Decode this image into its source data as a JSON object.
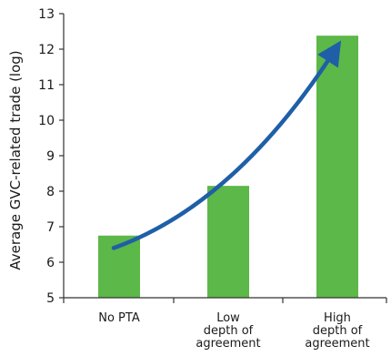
{
  "chart_data": {
    "type": "bar",
    "categories": [
      [
        "No PTA"
      ],
      [
        "Low",
        "depth of",
        "agreement"
      ],
      [
        "High",
        "depth of",
        "agreement"
      ]
    ],
    "values": [
      6.75,
      8.15,
      12.38
    ],
    "ylabel": "Average GVC-related trade (log)",
    "ylim": [
      5,
      13
    ],
    "yticks": [
      5,
      6,
      7,
      8,
      9,
      10,
      11,
      12,
      13
    ],
    "grid": false,
    "trend_arrow": {
      "from": [
        0,
        6.4
      ],
      "to": [
        2,
        12.0
      ]
    },
    "colors": {
      "bar": "#5cb848",
      "arrow": "#1f5fa8",
      "axis": "#333333"
    }
  }
}
